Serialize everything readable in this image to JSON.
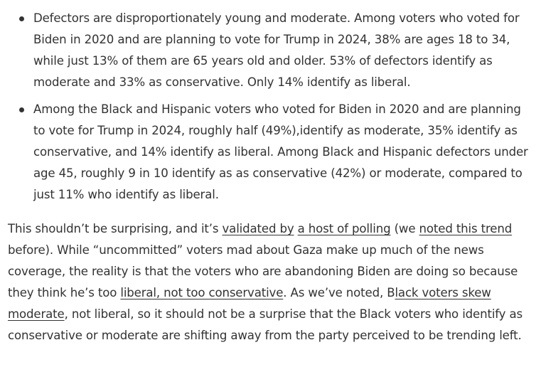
{
  "bullets": [
    {
      "text": "Defectors are disproportionately young and moderate. Among voters who voted for Biden in 2020 and are planning to vote for Trump in 2024, 38%  are ages 18 to 34, while just 13% of them are 65 years old and older. 53% of defectors identify as moderate and 33% as conservative. Only 14% identify as liberal."
    },
    {
      "text": "Among the Black and Hispanic voters who voted for Biden in 2020 and are planning to vote for Trump in 2024, roughly half (49%),identify as moderate, 35% identify as conservative, and 14% identify as liberal. Among Black and Hispanic defectors under age 45, roughly 9 in 10 identify as as conservative (42%) or moderate, compared to just 11% who identify as liberal."
    }
  ],
  "paragraph": {
    "t1": "This shouldn’t be surprising, and it’s ",
    "link1": "validated by",
    "t2": " ",
    "link2": "a host of polling",
    "t3": " (we ",
    "link3": "noted this trend",
    "t4": " before). While “uncommitted” voters mad about Gaza make up much of the news coverage, the reality is that the voters who are abandoning Biden are doing so because they think he’s too ",
    "link4": "liberal, not too conservative",
    "t5": ". As we’ve noted, B",
    "link5": "lack voters skew moderate",
    "t6": ", not liberal, so it should not be a surprise that the Black voters who identify as conservative or moderate are shifting away from the party perceived to be trending left."
  }
}
